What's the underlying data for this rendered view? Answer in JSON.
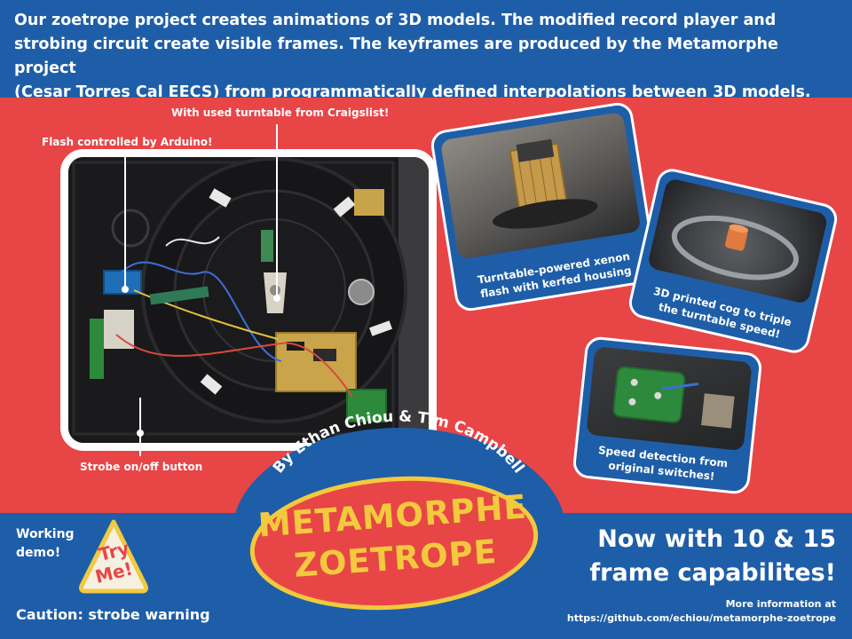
{
  "intro": {
    "line1": "Our zoetrope project creates animations of 3D models. The modified record player and",
    "line2": "strobing circuit create visible frames. The keyframes are produced by the Metamorphe project",
    "line3": "(Cesar Torres Cal EECS) from programmatically defined interpolations between 3D models."
  },
  "callouts": {
    "turntable": "With used turntable from Craigslist!",
    "flash": "Flash controlled by Arduino!",
    "strobe_button": "Strobe on/off button"
  },
  "cards": {
    "xenon": {
      "line1": "Turntable-powered xenon",
      "line2": "flash with kerfed housing"
    },
    "cog": {
      "line1": "3D printed cog to triple",
      "line2": "the turntable speed!"
    },
    "speed": {
      "line1": "Speed detection from",
      "line2": "original switches!"
    }
  },
  "authors": "By Ethan Chiou & Tim Campbell",
  "title": {
    "line1": "METAMORPHE",
    "line2": "ZOETROPE"
  },
  "demo": {
    "line1": "Working",
    "line2": "demo!",
    "badge_line1": "Try",
    "badge_line2": "Me!"
  },
  "caution": "Caution: strobe warning",
  "capabilities": {
    "line1": "Now with 10 & 15",
    "line2": "frame capabilites!"
  },
  "more_info": {
    "line1": "More information at",
    "line2": "https://github.com/echiou/metamorphe-zoetrope"
  },
  "colors": {
    "blue": "#1e5ea8",
    "red": "#e84547",
    "yellow": "#f3c93d"
  }
}
